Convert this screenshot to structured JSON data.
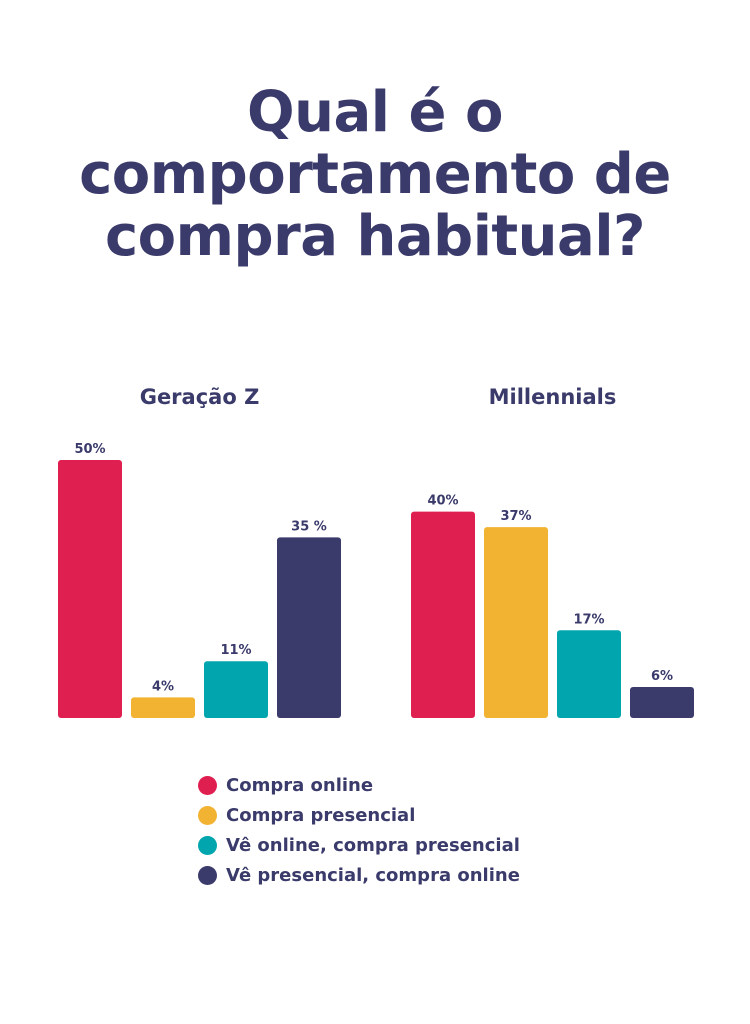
{
  "title": {
    "line1": "Qual é o",
    "line2": "comportamento de",
    "line3": "compra habitual?"
  },
  "colors": {
    "text": "#3a3a6b",
    "series": [
      "#e01f51",
      "#f2b332",
      "#00a5ad",
      "#3a3a6b"
    ]
  },
  "legend": {
    "items": [
      {
        "label": "Compra online",
        "color": "#e01f51"
      },
      {
        "label": "Compra presencial",
        "color": "#f2b332"
      },
      {
        "label": "Vê online, compra presencial",
        "color": "#00a5ad"
      },
      {
        "label": "Vê presencial, compra online",
        "color": "#3a3a6b"
      }
    ]
  },
  "chart_data": [
    {
      "type": "bar",
      "title": "Geração Z",
      "categories": [
        "Compra online",
        "Compra presencial",
        "Vê online, compra presencial",
        "Vê presencial, compra online"
      ],
      "values": [
        50,
        4,
        11,
        35
      ],
      "data_labels": [
        "50%",
        "4%",
        "11%",
        "35 %"
      ],
      "ylim": [
        0,
        50
      ],
      "grid": false,
      "legend": "bottom"
    },
    {
      "type": "bar",
      "title": "Millennials",
      "categories": [
        "Compra online",
        "Compra presencial",
        "Vê online, compra presencial",
        "Vê presencial, compra online"
      ],
      "values": [
        40,
        37,
        17,
        6
      ],
      "data_labels": [
        "40%",
        "37%",
        "17%",
        "6%"
      ],
      "ylim": [
        0,
        50
      ],
      "grid": false,
      "legend": "bottom"
    }
  ]
}
